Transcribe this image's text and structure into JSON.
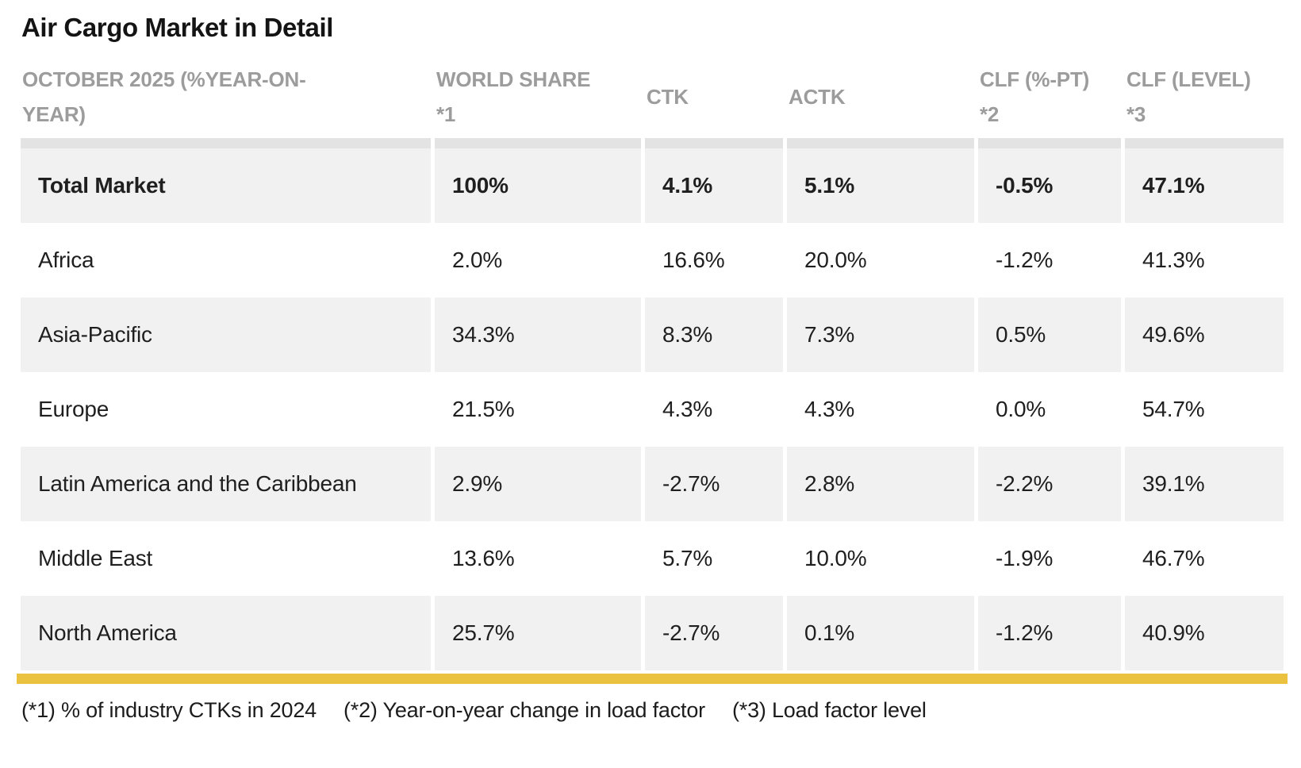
{
  "title": "Air Cargo Market in Detail",
  "colors": {
    "accent_bar": "#EAC23F",
    "zebra_row": "#F1F1F1",
    "header_divider": "#E3E3E3",
    "header_text": "#9C9C9C",
    "body_text": "#1F1F1F"
  },
  "chart_data": {
    "type": "table",
    "title": "Air Cargo Market in Detail",
    "columns": [
      "OCTOBER 2025 (%YEAR-ON-YEAR)",
      "WORLD SHARE *1",
      "CTK",
      "ACTK",
      "CLF (%-PT) *2",
      "CLF (LEVEL) *3"
    ],
    "column_lines": [
      {
        "id": "period",
        "lines": [
          "OCTOBER 2025 (%YEAR-ON-",
          "YEAR)"
        ]
      },
      {
        "id": "world-share",
        "lines": [
          "WORLD SHARE",
          "*1"
        ]
      },
      {
        "id": "ctk",
        "lines": [
          "CTK"
        ]
      },
      {
        "id": "actk",
        "lines": [
          "ACTK"
        ]
      },
      {
        "id": "clf-pt",
        "lines": [
          "CLF (%-PT)",
          "*2"
        ]
      },
      {
        "id": "clf-level",
        "lines": [
          "CLF (LEVEL)",
          "*3"
        ]
      }
    ],
    "rows": [
      {
        "emphasis": true,
        "cells": [
          "Total Market",
          "100%",
          "4.1%",
          "5.1%",
          "-0.5%",
          "47.1%"
        ]
      },
      {
        "emphasis": false,
        "cells": [
          "Africa",
          "2.0%",
          "16.6%",
          "20.0%",
          "-1.2%",
          "41.3%"
        ]
      },
      {
        "emphasis": false,
        "cells": [
          "Asia-Pacific",
          "34.3%",
          "8.3%",
          "7.3%",
          "0.5%",
          "49.6%"
        ]
      },
      {
        "emphasis": false,
        "cells": [
          "Europe",
          "21.5%",
          "4.3%",
          "4.3%",
          "0.0%",
          "54.7%"
        ]
      },
      {
        "emphasis": false,
        "cells": [
          "Latin America and the Caribbean",
          "2.9%",
          "-2.7%",
          "2.8%",
          "-2.2%",
          "39.1%"
        ]
      },
      {
        "emphasis": false,
        "cells": [
          "Middle East",
          "13.6%",
          "5.7%",
          "10.0%",
          "-1.9%",
          "46.7%"
        ]
      },
      {
        "emphasis": false,
        "cells": [
          "North America",
          "25.7%",
          "-2.7%",
          "0.1%",
          "-1.2%",
          "40.9%"
        ]
      }
    ],
    "footnotes": [
      "(*1) % of industry CTKs in 2024",
      "(*2) Year-on-year change in load factor",
      "(*3) Load factor level"
    ]
  }
}
